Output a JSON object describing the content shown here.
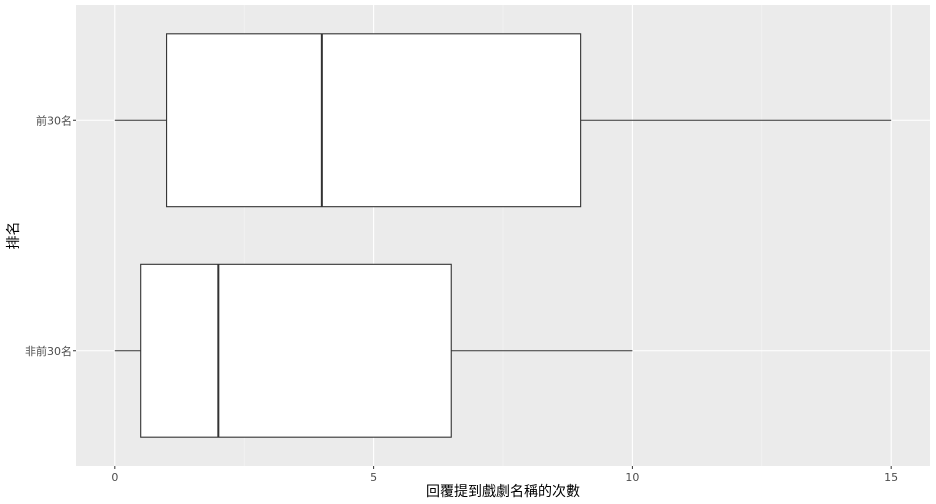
{
  "chart_data": {
    "type": "boxplot",
    "orientation": "horizontal",
    "title": "",
    "xlabel": "回覆提到戲劇名稱的次數",
    "ylabel": "排名",
    "xlim": [
      -0.75,
      15.75
    ],
    "x_ticks": [
      0,
      5,
      10,
      15
    ],
    "x_tick_labels": [
      "0",
      "5",
      "10",
      "15"
    ],
    "categories": [
      "前30名",
      "非前30名"
    ],
    "boxes": [
      {
        "category": "前30名",
        "whisker_low": 0,
        "q1": 1,
        "median": 4,
        "q3": 9,
        "whisker_high": 15
      },
      {
        "category": "非前30名",
        "whisker_low": 0,
        "q1": 0.5,
        "median": 2,
        "q3": 6.5,
        "whisker_high": 10
      }
    ],
    "grid": true,
    "legend": "none",
    "colors": {
      "panel": "#ebebeb",
      "grid_major": "#ffffff",
      "box_fill": "#ffffff",
      "box_line": "#333333"
    }
  }
}
